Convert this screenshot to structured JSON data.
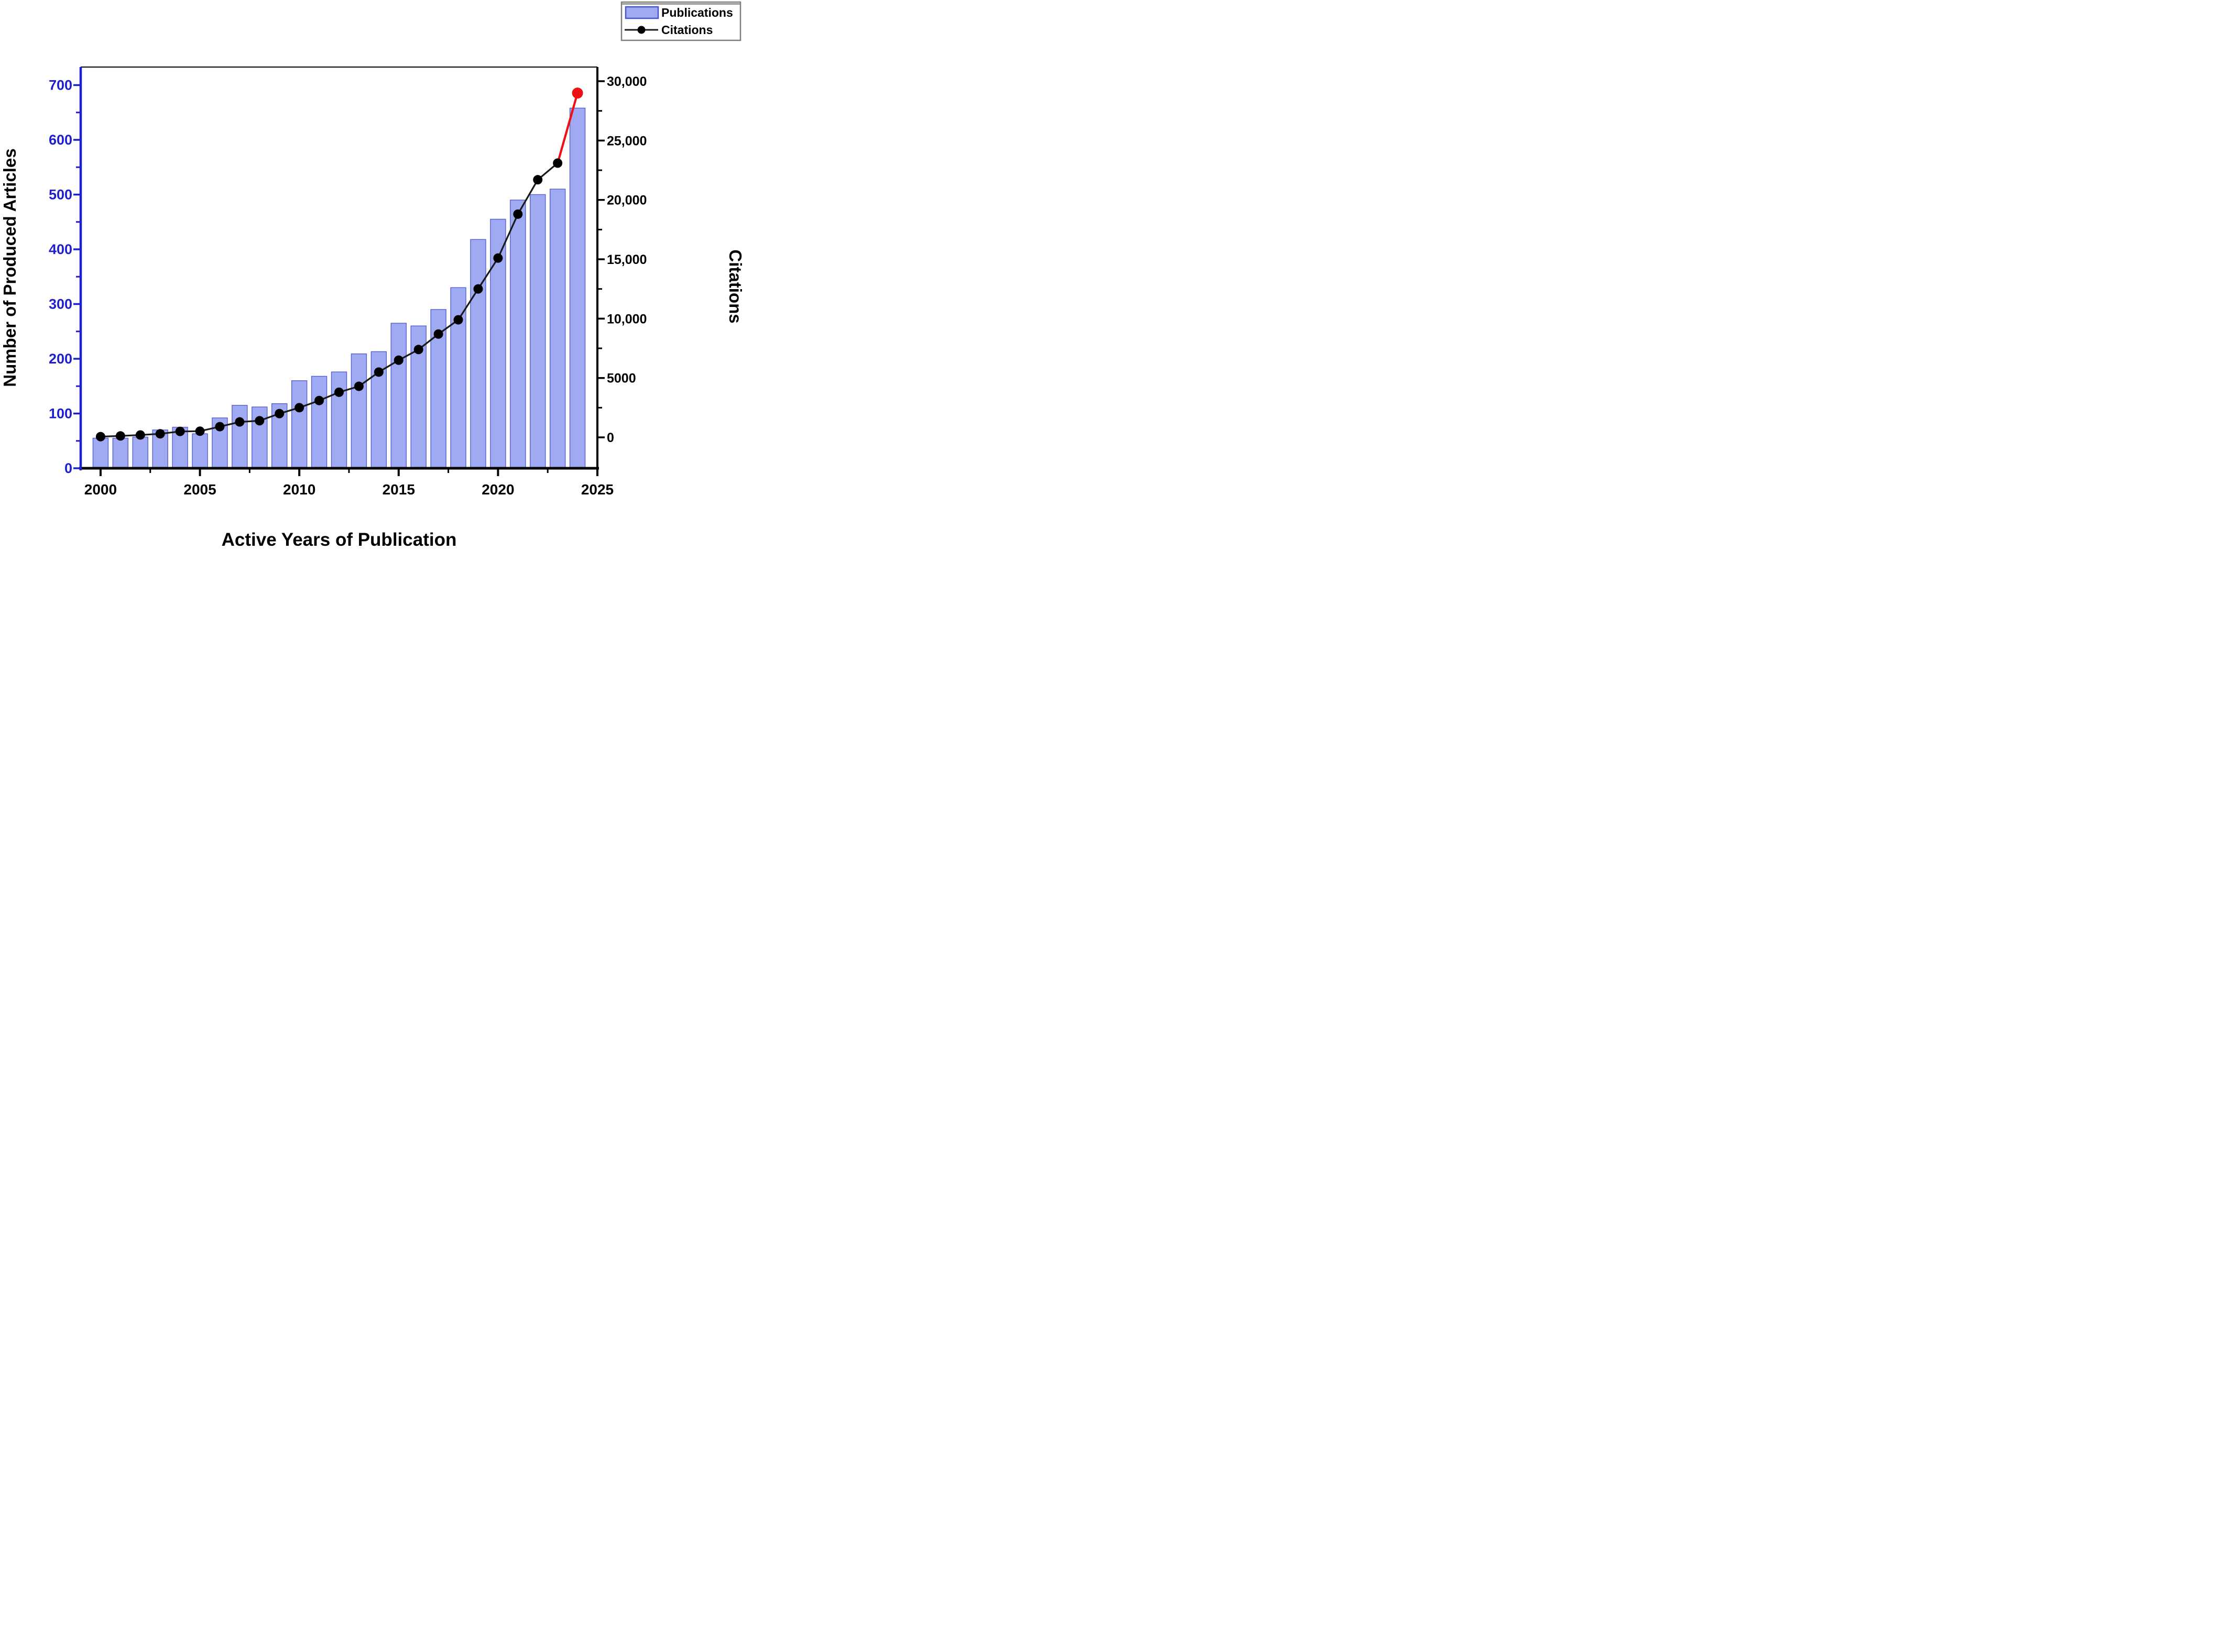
{
  "legend": {
    "publications_label": "Publications",
    "citations_label": "Citations"
  },
  "colors": {
    "bar_fill": "#a0aaf2",
    "bar_stroke": "#5560d0",
    "line": "#1a1a1a",
    "marker": "#000000",
    "final_segment": "#ee1111",
    "final_marker": "#ee1111",
    "left_axis": "#1f1fd0",
    "right_axis": "#000000",
    "x_axis": "#000000",
    "legend_border": "#7f7f7f"
  },
  "chart_data": {
    "type": "bar",
    "title": "",
    "xlabel": "Active Years of Publication",
    "left_ylabel": "Number of Produced Articles",
    "right_ylabel": "Citations",
    "x": [
      2000,
      2001,
      2002,
      2003,
      2004,
      2005,
      2006,
      2007,
      2008,
      2009,
      2010,
      2011,
      2012,
      2013,
      2014,
      2015,
      2016,
      2017,
      2018,
      2019,
      2020,
      2021,
      2022,
      2023,
      2024
    ],
    "series": [
      {
        "name": "Publications",
        "type": "bar",
        "axis": "left",
        "values": [
          55,
          55,
          57,
          70,
          75,
          63,
          92,
          115,
          112,
          118,
          160,
          168,
          176,
          209,
          213,
          265,
          260,
          290,
          330,
          418,
          455,
          490,
          500,
          510,
          658
        ]
      },
      {
        "name": "Citations",
        "type": "line",
        "axis": "right",
        "highlight_last_segment": true,
        "values": [
          60,
          120,
          200,
          300,
          500,
          520,
          900,
          1300,
          1400,
          2000,
          2500,
          3100,
          3800,
          4300,
          5500,
          6500,
          7400,
          8700,
          9900,
          12500,
          15100,
          18800,
          21700,
          23100,
          29000
        ]
      }
    ],
    "x_range": [
      1999,
      2025
    ],
    "x_ticks": [
      {
        "v": 2000,
        "label": "2000"
      },
      {
        "v": 2005,
        "label": "2005"
      },
      {
        "v": 2010,
        "label": "2010"
      },
      {
        "v": 2015,
        "label": "2015"
      },
      {
        "v": 2020,
        "label": "2020"
      },
      {
        "v": 2025,
        "label": "2025"
      }
    ],
    "x_minor_ticks": [
      2002.5,
      2007.5,
      2012.5,
      2017.5,
      2022.5
    ],
    "left_range": [
      0,
      733
    ],
    "left_ticks": [
      {
        "v": 0,
        "label": "0"
      },
      {
        "v": 100,
        "label": "100"
      },
      {
        "v": 200,
        "label": "200"
      },
      {
        "v": 300,
        "label": "300"
      },
      {
        "v": 400,
        "label": "400"
      },
      {
        "v": 500,
        "label": "500"
      },
      {
        "v": 600,
        "label": "600"
      },
      {
        "v": 700,
        "label": "700"
      }
    ],
    "left_minor_ticks": [
      50,
      150,
      250,
      350,
      450,
      550,
      650
    ],
    "right_range": [
      0,
      31200
    ],
    "right_ticks": [
      {
        "v": 0,
        "label": "0"
      },
      {
        "v": 5000,
        "label": "5000"
      },
      {
        "v": 10000,
        "label": "10,000"
      },
      {
        "v": 15000,
        "label": "15,000"
      },
      {
        "v": 20000,
        "label": "20,000"
      },
      {
        "v": 25000,
        "label": "25,000"
      },
      {
        "v": 30000,
        "label": "30,000"
      }
    ],
    "right_minor_ticks": [
      2500,
      7500,
      12500,
      17500,
      22500,
      27500
    ],
    "grid": false,
    "legend_position": "top-right"
  }
}
